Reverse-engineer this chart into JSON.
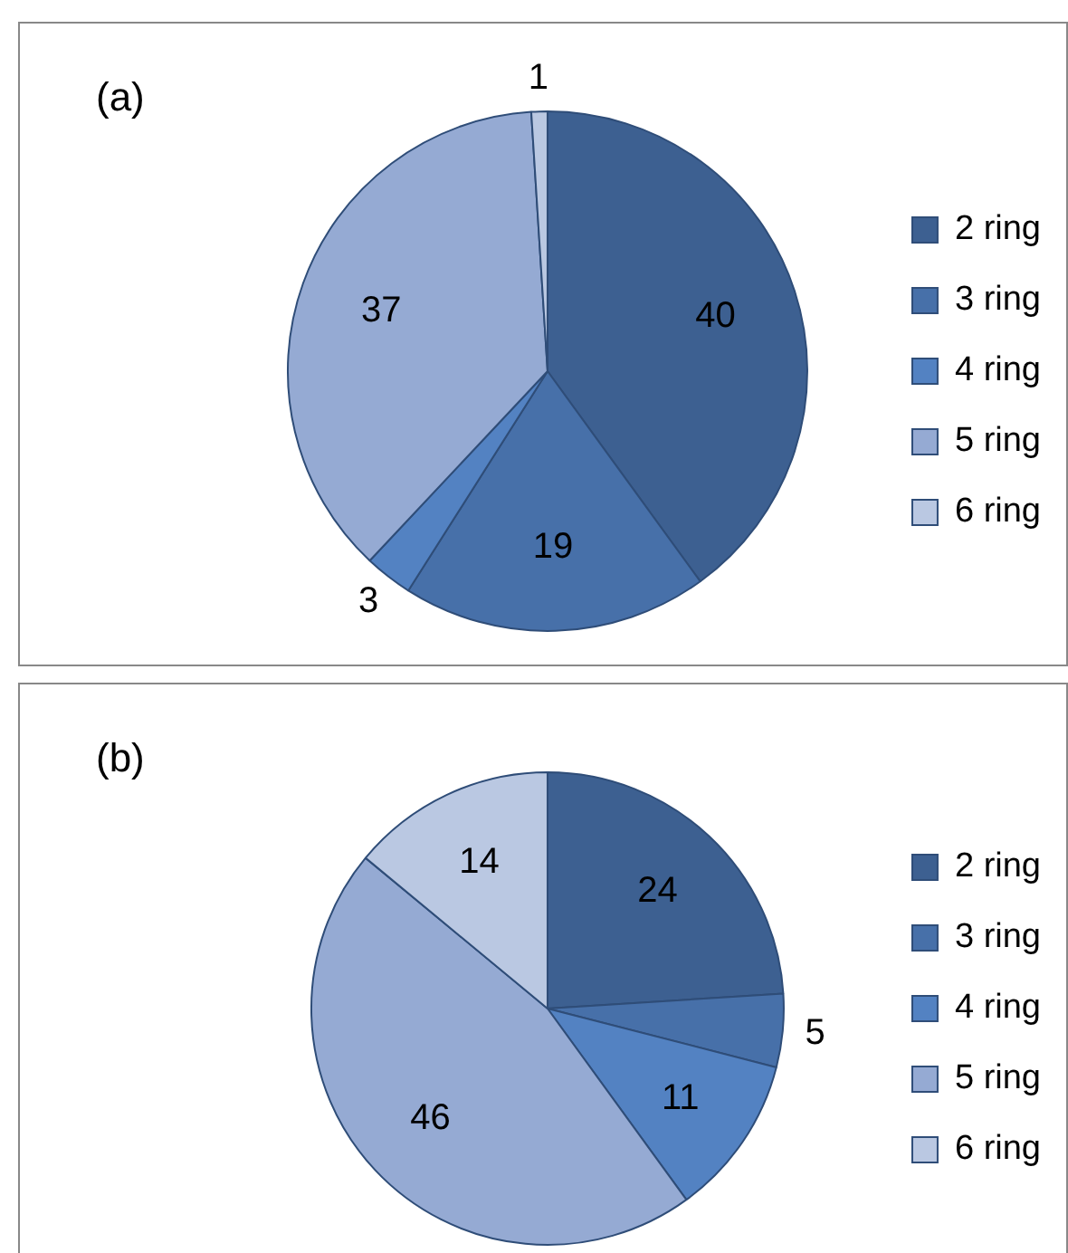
{
  "chart_data": [
    {
      "type": "pie",
      "title": "(a)",
      "categories": [
        "2 ring",
        "3 ring",
        "4 ring",
        "5 ring",
        "6 ring"
      ],
      "values": [
        40,
        19,
        3,
        37,
        1
      ],
      "colors": [
        "#3d6091",
        "#4770a9",
        "#5382c2",
        "#95aad3",
        "#bac8e2"
      ],
      "data_labels": true,
      "legend": "right"
    },
    {
      "type": "pie",
      "title": "(b)",
      "categories": [
        "2 ring",
        "3 ring",
        "4 ring",
        "5 ring",
        "6 ring"
      ],
      "values": [
        24,
        5,
        11,
        46,
        14
      ],
      "colors": [
        "#3d6091",
        "#4770a9",
        "#5382c2",
        "#95aad3",
        "#bac8e2"
      ],
      "data_labels": true,
      "legend": "right"
    }
  ]
}
